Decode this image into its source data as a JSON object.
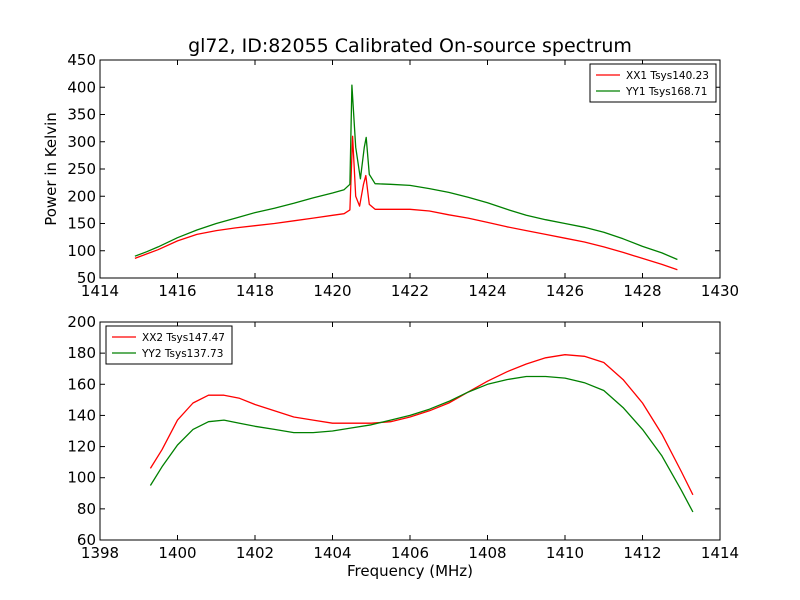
{
  "figure_title": "gl72, ID:82055 Calibrated On-source spectrum",
  "colors": {
    "xx": "#ff0000",
    "yy": "#008000"
  },
  "chart_data": [
    {
      "type": "line",
      "title": "gl72, ID:82055 Calibrated On-source spectrum",
      "xlabel": "",
      "ylabel": "Power in Kelvin",
      "xlim": [
        1414,
        1430
      ],
      "ylim": [
        50,
        450
      ],
      "xticks": [
        1414,
        1416,
        1418,
        1420,
        1422,
        1424,
        1426,
        1428,
        1430
      ],
      "yticks": [
        50,
        100,
        150,
        200,
        250,
        300,
        350,
        400,
        450
      ],
      "legend": "top-right",
      "series": [
        {
          "name": "XX1 Tsys140.23",
          "color": "#ff0000",
          "points": [
            [
              1414.9,
              86
            ],
            [
              1415.2,
              94
            ],
            [
              1415.5,
              102
            ],
            [
              1416.0,
              118
            ],
            [
              1416.5,
              130
            ],
            [
              1417.0,
              137
            ],
            [
              1417.5,
              142
            ],
            [
              1418.0,
              146
            ],
            [
              1418.5,
              150
            ],
            [
              1419.0,
              155
            ],
            [
              1419.5,
              160
            ],
            [
              1420.0,
              165
            ],
            [
              1420.3,
              168
            ],
            [
              1420.45,
              175
            ],
            [
              1420.52,
              310
            ],
            [
              1420.6,
              200
            ],
            [
              1420.7,
              182
            ],
            [
              1420.8,
              222
            ],
            [
              1420.86,
              238
            ],
            [
              1420.95,
              185
            ],
            [
              1421.1,
              176
            ],
            [
              1421.5,
              176
            ],
            [
              1422.0,
              176
            ],
            [
              1422.5,
              173
            ],
            [
              1423.0,
              166
            ],
            [
              1423.5,
              160
            ],
            [
              1424.0,
              152
            ],
            [
              1424.5,
              144
            ],
            [
              1425.0,
              137
            ],
            [
              1425.5,
              130
            ],
            [
              1426.0,
              123
            ],
            [
              1426.5,
              116
            ],
            [
              1427.0,
              107
            ],
            [
              1427.5,
              97
            ],
            [
              1428.0,
              86
            ],
            [
              1428.5,
              75
            ],
            [
              1428.9,
              65
            ]
          ]
        },
        {
          "name": "YY1 Tsys168.71",
          "color": "#008000",
          "points": [
            [
              1414.9,
              90
            ],
            [
              1415.2,
              98
            ],
            [
              1415.5,
              107
            ],
            [
              1416.0,
              124
            ],
            [
              1416.5,
              138
            ],
            [
              1417.0,
              150
            ],
            [
              1417.5,
              160
            ],
            [
              1418.0,
              170
            ],
            [
              1418.5,
              178
            ],
            [
              1419.0,
              187
            ],
            [
              1419.5,
              197
            ],
            [
              1420.0,
              206
            ],
            [
              1420.3,
              212
            ],
            [
              1420.45,
              222
            ],
            [
              1420.5,
              404
            ],
            [
              1420.6,
              290
            ],
            [
              1420.72,
              232
            ],
            [
              1420.82,
              290
            ],
            [
              1420.87,
              308
            ],
            [
              1420.95,
              240
            ],
            [
              1421.1,
              223
            ],
            [
              1421.5,
              222
            ],
            [
              1422.0,
              220
            ],
            [
              1422.5,
              214
            ],
            [
              1423.0,
              207
            ],
            [
              1423.5,
              198
            ],
            [
              1424.0,
              188
            ],
            [
              1424.5,
              176
            ],
            [
              1425.0,
              165
            ],
            [
              1425.5,
              157
            ],
            [
              1426.0,
              150
            ],
            [
              1426.5,
              143
            ],
            [
              1427.0,
              134
            ],
            [
              1427.5,
              122
            ],
            [
              1428.0,
              108
            ],
            [
              1428.5,
              96
            ],
            [
              1428.9,
              84
            ]
          ]
        }
      ]
    },
    {
      "type": "line",
      "title": "",
      "xlabel": "Frequency (MHz)",
      "ylabel": "",
      "xlim": [
        1398,
        1414
      ],
      "ylim": [
        60,
        200
      ],
      "xticks": [
        1398,
        1400,
        1402,
        1404,
        1406,
        1408,
        1410,
        1412,
        1414
      ],
      "yticks": [
        60,
        80,
        100,
        120,
        140,
        160,
        180,
        200
      ],
      "legend": "top-left",
      "series": [
        {
          "name": "XX2 Tsys147.47",
          "color": "#ff0000",
          "points": [
            [
              1399.3,
              106
            ],
            [
              1399.6,
              118
            ],
            [
              1400.0,
              137
            ],
            [
              1400.4,
              148
            ],
            [
              1400.8,
              153
            ],
            [
              1401.2,
              153
            ],
            [
              1401.6,
              151
            ],
            [
              1402.0,
              147
            ],
            [
              1402.5,
              143
            ],
            [
              1403.0,
              139
            ],
            [
              1403.5,
              137
            ],
            [
              1404.0,
              135
            ],
            [
              1404.5,
              135
            ],
            [
              1405.0,
              135
            ],
            [
              1405.5,
              136
            ],
            [
              1406.0,
              139
            ],
            [
              1406.5,
              143
            ],
            [
              1407.0,
              148
            ],
            [
              1407.5,
              155
            ],
            [
              1408.0,
              162
            ],
            [
              1408.5,
              168
            ],
            [
              1409.0,
              173
            ],
            [
              1409.5,
              177
            ],
            [
              1410.0,
              179
            ],
            [
              1410.5,
              178
            ],
            [
              1411.0,
              174
            ],
            [
              1411.5,
              163
            ],
            [
              1412.0,
              148
            ],
            [
              1412.5,
              128
            ],
            [
              1413.0,
              104
            ],
            [
              1413.3,
              89
            ]
          ]
        },
        {
          "name": "YY2 Tsys137.73",
          "color": "#008000",
          "points": [
            [
              1399.3,
              95
            ],
            [
              1399.6,
              107
            ],
            [
              1400.0,
              121
            ],
            [
              1400.4,
              131
            ],
            [
              1400.8,
              136
            ],
            [
              1401.2,
              137
            ],
            [
              1401.6,
              135
            ],
            [
              1402.0,
              133
            ],
            [
              1402.5,
              131
            ],
            [
              1403.0,
              129
            ],
            [
              1403.5,
              129
            ],
            [
              1404.0,
              130
            ],
            [
              1404.5,
              132
            ],
            [
              1405.0,
              134
            ],
            [
              1405.5,
              137
            ],
            [
              1406.0,
              140
            ],
            [
              1406.5,
              144
            ],
            [
              1407.0,
              149
            ],
            [
              1407.5,
              155
            ],
            [
              1408.0,
              160
            ],
            [
              1408.5,
              163
            ],
            [
              1409.0,
              165
            ],
            [
              1409.5,
              165
            ],
            [
              1410.0,
              164
            ],
            [
              1410.5,
              161
            ],
            [
              1411.0,
              156
            ],
            [
              1411.5,
              145
            ],
            [
              1412.0,
              131
            ],
            [
              1412.5,
              114
            ],
            [
              1413.0,
              92
            ],
            [
              1413.3,
              78
            ]
          ]
        }
      ]
    }
  ]
}
